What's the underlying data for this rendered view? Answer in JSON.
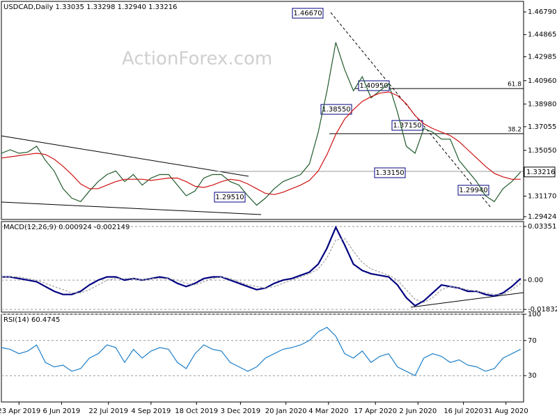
{
  "chart_data": [
    {
      "type": "line",
      "title": "USDCAD,Daily  1.33035 1.33298 1.32940 1.33216",
      "watermark": "ActionForex.com",
      "x": [
        0,
        6,
        12,
        18,
        24,
        30,
        36,
        42,
        48,
        54,
        60,
        66,
        72,
        78,
        84,
        90,
        96,
        102,
        108,
        114,
        120,
        126,
        132,
        138,
        144,
        150,
        156,
        162,
        168,
        174,
        180,
        186,
        192,
        198,
        204,
        210,
        216,
        222,
        228,
        234,
        240,
        246,
        252,
        258,
        264,
        270,
        276,
        282,
        288,
        294,
        300,
        306,
        312,
        318,
        324,
        330,
        336,
        342,
        348,
        354
      ],
      "xlim": [
        0,
        356
      ],
      "ylim": [
        1.2919,
        1.4768
      ],
      "yticks": [
        {
          "value": 1.4679,
          "label": "1.46790"
        },
        1.44865,
        1.42985,
        {
          "value": 1.4096,
          "label": "1.40960"
        },
        {
          "value": 1.3898,
          "label": "1.38980"
        },
        1.37055,
        {
          "value": 1.3505,
          "label": "1.35050"
        },
        {
          "value": 1.3117,
          "label": "1.31170"
        },
        1.29424
      ],
      "series": [
        {
          "color": "#1f5a2c",
          "values": [
            1.348,
            1.351,
            1.348,
            1.349,
            1.354,
            1.342,
            1.333,
            1.318,
            1.31,
            1.307,
            1.316,
            1.324,
            1.33,
            1.333,
            1.324,
            1.33,
            1.321,
            1.327,
            1.33,
            1.33,
            1.321,
            1.312,
            1.316,
            1.327,
            1.33,
            1.33,
            1.324,
            1.321,
            1.312,
            1.304,
            1.31,
            1.318,
            1.324,
            1.327,
            1.33,
            1.339,
            1.366,
            1.401,
            1.442,
            1.419,
            1.401,
            1.413,
            1.395,
            1.401,
            1.407,
            1.383,
            1.354,
            1.348,
            1.369,
            1.366,
            1.36,
            1.36,
            1.342,
            1.333,
            1.324,
            1.312,
            1.307,
            1.318,
            1.324,
            1.33216
          ],
          "value_labels": [
            null,
            null,
            null,
            null,
            null,
            null,
            null,
            null,
            null,
            null,
            null,
            null,
            null,
            null,
            null,
            null,
            null,
            null,
            null,
            null,
            null,
            null,
            null,
            null,
            null,
            null,
            null,
            null,
            null,
            null,
            null,
            null,
            null,
            null,
            null,
            null,
            null,
            null,
            null,
            null,
            null,
            null,
            null,
            null,
            null,
            null,
            null,
            null,
            null,
            null,
            null,
            null,
            null,
            null,
            null,
            null,
            null,
            null,
            null,
            "1.33216"
          ]
        },
        {
          "color": "#d01010",
          "values": [
            1.344,
            1.345,
            1.346,
            1.347,
            1.348,
            1.347,
            1.343,
            1.337,
            1.33,
            1.322,
            1.318,
            1.318,
            1.321,
            1.324,
            1.326,
            1.326,
            1.326,
            1.325,
            1.326,
            1.327,
            1.327,
            1.324,
            1.32,
            1.319,
            1.321,
            1.324,
            1.326,
            1.325,
            1.322,
            1.318,
            1.314,
            1.313,
            1.315,
            1.318,
            1.321,
            1.325,
            1.333,
            1.347,
            1.364,
            1.377,
            1.385,
            1.392,
            1.396,
            1.399,
            1.4,
            1.397,
            1.39,
            1.38,
            1.373,
            1.369,
            1.366,
            1.363,
            1.358,
            1.351,
            1.344,
            1.337,
            1.331,
            1.328,
            1.326,
            1.326
          ]
        }
      ],
      "annotations": [
        "1.46670",
        "1.38550",
        "1.40950",
        "1.37150",
        "1.33150",
        "1.29510",
        "1.29940"
      ],
      "fib_levels": [
        {
          "label": "61.8",
          "value": 1.4029
        },
        {
          "label": "38.2",
          "value": 1.3646
        }
      ]
    },
    {
      "type": "line",
      "title": "MACD(12,26,9) 0.000924 -0.002149",
      "x": [
        0,
        6,
        12,
        18,
        24,
        30,
        36,
        42,
        48,
        54,
        60,
        66,
        72,
        78,
        84,
        90,
        96,
        102,
        108,
        114,
        120,
        126,
        132,
        138,
        144,
        150,
        156,
        162,
        168,
        174,
        180,
        186,
        192,
        198,
        204,
        210,
        216,
        222,
        228,
        234,
        240,
        246,
        252,
        258,
        264,
        270,
        276,
        282,
        288,
        294,
        300,
        306,
        312,
        318,
        324,
        330,
        336,
        342,
        348,
        354
      ],
      "xlim": [
        0,
        356
      ],
      "ylim": [
        -0.02,
        0.0366
      ],
      "yticks": [
        0.033515,
        {
          "value": 0,
          "label": "0.00"
        },
        -0.018324
      ],
      "grid": true,
      "series": [
        {
          "color": "#000080",
          "values": [
            0.002,
            0.002,
            0.001,
            0.0,
            -0.001,
            -0.004,
            -0.007,
            -0.009,
            -0.009,
            -0.007,
            -0.003,
            0.0,
            0.002,
            0.002,
            0.0,
            0.001,
            0.0,
            0.001,
            0.002,
            0.001,
            -0.002,
            -0.004,
            -0.002,
            0.001,
            0.002,
            0.002,
            0.0,
            -0.002,
            -0.004,
            -0.006,
            -0.005,
            -0.002,
            0.0,
            0.001,
            0.003,
            0.005,
            0.01,
            0.02,
            0.033,
            0.022,
            0.01,
            0.006,
            0.004,
            0.003,
            0.002,
            -0.003,
            -0.011,
            -0.016,
            -0.013,
            -0.008,
            -0.003,
            -0.004,
            -0.005,
            -0.007,
            -0.007,
            -0.009,
            -0.01,
            -0.008,
            -0.004,
            0.001
          ]
        },
        {
          "color": "#a0a0a0",
          "values": [
            0.002,
            0.002,
            0.002,
            0.001,
            0.0,
            -0.002,
            -0.004,
            -0.006,
            -0.008,
            -0.008,
            -0.006,
            -0.003,
            0.0,
            0.001,
            0.001,
            0.001,
            0.0,
            0.001,
            0.001,
            0.001,
            0.0,
            -0.002,
            -0.003,
            -0.001,
            0.001,
            0.002,
            0.001,
            -0.001,
            -0.003,
            -0.004,
            -0.005,
            -0.004,
            -0.002,
            0.0,
            0.002,
            0.004,
            0.007,
            0.014,
            0.025,
            0.026,
            0.018,
            0.011,
            0.007,
            0.005,
            0.003,
            0.0,
            -0.006,
            -0.012,
            -0.014,
            -0.011,
            -0.006,
            -0.004,
            -0.005,
            -0.006,
            -0.007,
            -0.008,
            -0.009,
            -0.009,
            -0.006,
            -0.002
          ]
        }
      ]
    },
    {
      "type": "line",
      "title": "RSI(14) 60.4745",
      "x": [
        0,
        6,
        12,
        18,
        24,
        30,
        36,
        42,
        48,
        54,
        60,
        66,
        72,
        78,
        84,
        90,
        96,
        102,
        108,
        114,
        120,
        126,
        132,
        138,
        144,
        150,
        156,
        162,
        168,
        174,
        180,
        186,
        192,
        198,
        204,
        210,
        216,
        222,
        228,
        234,
        240,
        246,
        252,
        258,
        264,
        270,
        276,
        282,
        288,
        294,
        300,
        306,
        312,
        318,
        324,
        330,
        336,
        342,
        348,
        354
      ],
      "xlim": [
        0,
        356
      ],
      "ylim": [
        0,
        100
      ],
      "yticks": [
        100,
        70,
        30
      ],
      "grid": true,
      "xticks": [
        {
          "value": 12,
          "label": "23 Apr 2019"
        },
        {
          "value": 41,
          "label": "6 Jun 2019"
        },
        {
          "value": 73,
          "label": "22 Jul 2019"
        },
        {
          "value": 102,
          "label": "4 Sep 2019"
        },
        {
          "value": 133,
          "label": "18 Oct 2019"
        },
        {
          "value": 163,
          "label": "3 Dec 2019"
        },
        {
          "value": 194,
          "label": "20 Jan 2020"
        },
        {
          "value": 223,
          "label": "4 Mar 2020"
        },
        {
          "value": 255,
          "label": "17 Apr 2020"
        },
        {
          "value": 284,
          "label": "2 Jun 2020"
        },
        {
          "value": 315,
          "label": "16 Jul 2020"
        },
        {
          "value": 344,
          "label": "31 Aug 2020"
        }
      ],
      "series": [
        {
          "color": "#1e7fc8",
          "values": [
            62,
            60,
            55,
            58,
            65,
            45,
            40,
            42,
            35,
            38,
            50,
            55,
            65,
            62,
            45,
            60,
            50,
            58,
            62,
            60,
            45,
            38,
            55,
            65,
            60,
            58,
            45,
            40,
            35,
            40,
            50,
            55,
            60,
            62,
            65,
            70,
            80,
            85,
            75,
            55,
            50,
            58,
            45,
            52,
            55,
            40,
            35,
            30,
            50,
            55,
            52,
            45,
            48,
            42,
            40,
            35,
            38,
            50,
            55,
            60
          ]
        }
      ]
    }
  ]
}
